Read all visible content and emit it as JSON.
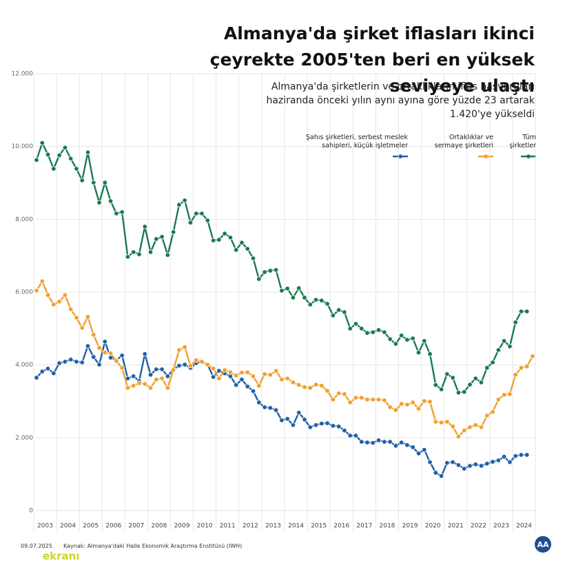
{
  "chart_data": {
    "type": "line",
    "title": "Almanya'da şirket iflasları ikinci çeyrekte 2005'ten beri en yüksek seviyeye ulaştı",
    "subtitle": "Almanya'da şirketlerin ve ortaklıkların iflas başvuruları haziranda önceki yılın aynı ayına göre yüzde 23 artarak 1.420'ye yükseldi",
    "categories": [
      null,
      "2003",
      null,
      null,
      null,
      "2004",
      null,
      null,
      null,
      "2005",
      null,
      null,
      null,
      "2006",
      null,
      null,
      null,
      "2007",
      null,
      null,
      null,
      "2008",
      null,
      null,
      null,
      "2009",
      null,
      null,
      null,
      "2010",
      null,
      null,
      null,
      "2011",
      null,
      null,
      null,
      "2012",
      null,
      null,
      null,
      "2013",
      null,
      null,
      null,
      "2014",
      null,
      null,
      null,
      "2015",
      null,
      null,
      null,
      "2016",
      null,
      null,
      null,
      "2017",
      null,
      null,
      null,
      "2018",
      null,
      null,
      null,
      "2019",
      null,
      null,
      null,
      "2020",
      null,
      null,
      null,
      "2021",
      null,
      null,
      null,
      "2022",
      null,
      null,
      null,
      "2023",
      null,
      null,
      null,
      "2024",
      null,
      null
    ],
    "series": [
      {
        "name": "Şahıs şirketleri, serbest meslek sahipleri, küçük işletmeler",
        "color": "#1f5fa8",
        "values": [
          3650,
          3820,
          3900,
          3770,
          4050,
          4090,
          4150,
          4090,
          4070,
          4520,
          4220,
          4010,
          4640,
          4200,
          4130,
          4260,
          3630,
          3690,
          3560,
          4300,
          3730,
          3880,
          3880,
          3690,
          3880,
          3980,
          4010,
          3920,
          4050,
          4090,
          4010,
          3670,
          3840,
          3770,
          3690,
          3450,
          3600,
          3410,
          3280,
          2970,
          2840,
          2820,
          2760,
          2480,
          2520,
          2350,
          2690,
          2500,
          2290,
          2350,
          2390,
          2400,
          2330,
          2310,
          2200,
          2060,
          2060,
          1890,
          1870,
          1860,
          1930,
          1890,
          1890,
          1780,
          1870,
          1800,
          1740,
          1570,
          1670,
          1330,
          1040,
          950,
          1310,
          1330,
          1250,
          1150,
          1230,
          1270,
          1230,
          1290,
          1340,
          1380,
          1480,
          1330,
          1500,
          1530,
          1530,
          null
        ]
      },
      {
        "name": "Ortaklıklar ve sermaye şirketleri",
        "color": "#f0a030",
        "values": [
          6040,
          6300,
          5920,
          5660,
          5740,
          5920,
          5530,
          5300,
          5020,
          5320,
          4830,
          4470,
          4340,
          4320,
          4110,
          3920,
          3370,
          3430,
          3500,
          3480,
          3370,
          3600,
          3630,
          3370,
          3860,
          4410,
          4490,
          3980,
          4130,
          4090,
          4010,
          3900,
          3630,
          3860,
          3800,
          3710,
          3790,
          3800,
          3690,
          3430,
          3750,
          3730,
          3840,
          3600,
          3630,
          3520,
          3450,
          3390,
          3370,
          3460,
          3430,
          3290,
          3050,
          3220,
          3200,
          2970,
          3100,
          3100,
          3050,
          3050,
          3050,
          3030,
          2840,
          2760,
          2930,
          2910,
          2970,
          2800,
          3010,
          2990,
          2440,
          2420,
          2440,
          2310,
          2030,
          2200,
          2290,
          2350,
          2290,
          2610,
          2710,
          3050,
          3180,
          3200,
          3730,
          3920,
          3960,
          4240
        ]
      },
      {
        "name": "Tüm şirketler",
        "color": "#1a7a50",
        "values": [
          9630,
          10100,
          9780,
          9390,
          9760,
          9970,
          9670,
          9390,
          9070,
          9840,
          9010,
          8460,
          9010,
          8500,
          8160,
          8200,
          6970,
          7100,
          7040,
          7800,
          7100,
          7460,
          7520,
          7020,
          7650,
          8400,
          8520,
          7910,
          8160,
          8160,
          7970,
          7420,
          7440,
          7610,
          7500,
          7160,
          7360,
          7190,
          6930,
          6360,
          6550,
          6590,
          6610,
          6040,
          6100,
          5850,
          6110,
          5850,
          5660,
          5790,
          5770,
          5680,
          5360,
          5510,
          5450,
          5000,
          5130,
          5000,
          4880,
          4900,
          4960,
          4900,
          4710,
          4580,
          4810,
          4690,
          4730,
          4340,
          4660,
          4300,
          3450,
          3330,
          3750,
          3650,
          3240,
          3260,
          3460,
          3630,
          3520,
          3920,
          4070,
          4410,
          4660,
          4510,
          5170,
          5470,
          5470,
          null
        ]
      }
    ],
    "ylim": [
      0,
      12000
    ],
    "yticks": [
      {
        "value": 0,
        "label": "0"
      },
      {
        "value": 2000,
        "label": "2.000"
      },
      {
        "value": 4000,
        "label": "4.000"
      },
      {
        "value": 6000,
        "label": "6.000"
      },
      {
        "value": 8000,
        "label": "8.000"
      },
      {
        "value": 10000,
        "label": "10.000"
      },
      {
        "value": 12000,
        "label": "12.000"
      }
    ],
    "grid": true,
    "legend": "top-right",
    "date": "09.07.2025",
    "source": "Kaynak: Almanya'daki Halle Ekonomik Araştırma Enstitüsü (IWH)",
    "watermark": "ekranı"
  }
}
